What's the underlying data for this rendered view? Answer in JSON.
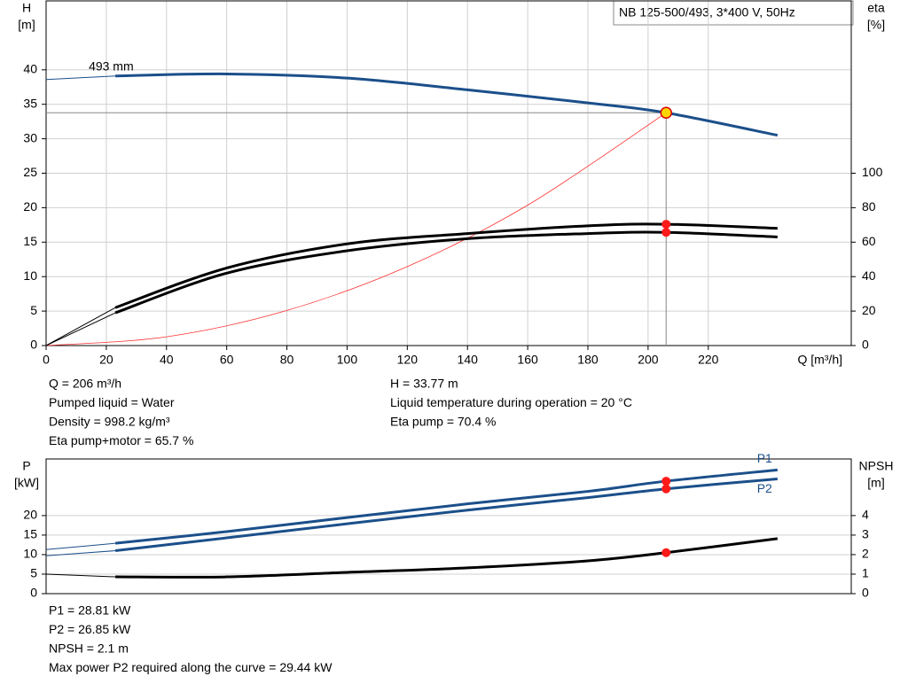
{
  "header": {
    "title": "NB 125-500/493, 3*400 V, 50Hz"
  },
  "chart_data": [
    {
      "type": "line",
      "y_label": "H",
      "y_unit": "[m]",
      "y2_label": "eta",
      "y2_unit": "[%]",
      "x_label": "Q [m³/h]",
      "annotation": "493 mm",
      "x": [
        0,
        23,
        60,
        100,
        140,
        180,
        206,
        243
      ],
      "xlim": [
        0,
        267.5
      ],
      "xticks": [
        0,
        20,
        40,
        60,
        80,
        100,
        120,
        140,
        160,
        180,
        200,
        220
      ],
      "ylim": [
        0,
        50
      ],
      "yticks": [
        0,
        5,
        10,
        15,
        20,
        25,
        30,
        35,
        40
      ],
      "y2lim": [
        0,
        200
      ],
      "y2ticks": [
        0,
        20,
        40,
        60,
        80,
        100
      ],
      "grid": true,
      "series": [
        {
          "color": "#1b4f8a",
          "values": [
            38.6,
            39.1,
            39.4,
            38.8,
            37.1,
            35.2,
            33.77,
            30.5
          ]
        },
        {
          "color": "#000000",
          "axis": "y2",
          "values": [
            0,
            22,
            45,
            59,
            65,
            69.5,
            70.4,
            68
          ]
        },
        {
          "color": "#000000",
          "axis": "y2",
          "values": [
            0,
            19,
            42,
            55,
            62,
            65,
            65.7,
            63
          ]
        }
      ],
      "system_curve": {
        "color": "#ff3030",
        "x": [
          0,
          40,
          80,
          120,
          160,
          206
        ],
        "values": [
          0,
          1.27,
          5.09,
          11.46,
          20.37,
          33.77
        ]
      },
      "operating_point": {
        "x": 206,
        "y": 33.77,
        "color": "#ffd700"
      },
      "info_left": [
        "Q = 206 m³/h",
        "Pumped liquid = Water",
        "Density = 998.2 kg/m³",
        "Eta pump+motor = 65.7 %"
      ],
      "info_right": [
        "H = 33.77 m",
        "Liquid temperature during operation = 20 °C",
        "Eta pump = 70.4 %"
      ]
    },
    {
      "type": "line",
      "y_label": "P",
      "y_unit": "[kW]",
      "y2_label": "NPSH",
      "y2_unit": "[m]",
      "x": [
        0,
        23,
        60,
        100,
        140,
        180,
        206,
        243
      ],
      "xlim": [
        0,
        267.5
      ],
      "ylim": [
        0,
        34.5
      ],
      "yticks": [
        0,
        5,
        10,
        15,
        20
      ],
      "y2lim": [
        0,
        6.9
      ],
      "y2ticks": [
        0,
        1,
        2,
        3,
        4
      ],
      "grid": true,
      "operating_x": 206,
      "series": [
        {
          "name": "P1",
          "color": "#1b4f8a",
          "values": [
            11.3,
            12.9,
            15.9,
            19.5,
            23,
            26.2,
            28.81,
            31.7
          ]
        },
        {
          "name": "P2",
          "color": "#1b4f8a",
          "values": [
            9.7,
            11,
            14.3,
            17.9,
            21.4,
            24.6,
            26.85,
            29.4
          ]
        },
        {
          "color": "#000000",
          "axis": "y2",
          "values": [
            1.0,
            0.86,
            0.86,
            1.09,
            1.32,
            1.68,
            2.1,
            2.82
          ]
        }
      ],
      "info_left": [
        "P1 = 28.81 kW",
        "P2 = 26.85 kW",
        "NPSH = 2.1 m",
        "Max power P2 required along the curve = 29.44 kW"
      ]
    }
  ]
}
